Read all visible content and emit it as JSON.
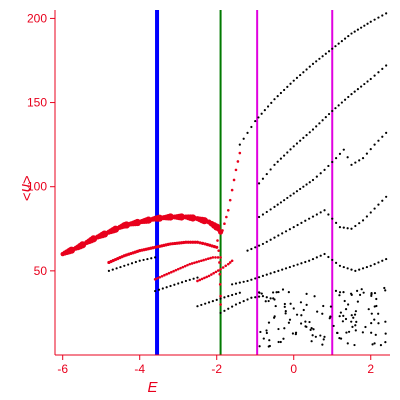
{
  "chart_data": {
    "type": "scatter",
    "title": "",
    "xlabel": "E",
    "ylabel": "<n>",
    "xlim": [
      -6.2,
      2.5
    ],
    "ylim": [
      0,
      205
    ],
    "x_ticks": [
      -6,
      -4,
      -2,
      0,
      2
    ],
    "y_ticks": [
      50,
      100,
      150,
      200
    ],
    "grid": false,
    "legend": "none",
    "colors": {
      "axis": "#e8001c",
      "red_points": "#e8001c",
      "black_points": "#000000",
      "line_blue": "#0000ff",
      "line_green": "#007a00",
      "line_magenta": "#e000e0"
    },
    "vertical_lines": [
      {
        "x": -3.55,
        "color": "#0000ff"
      },
      {
        "x": -1.9,
        "color": "#007a00"
      },
      {
        "x": -0.95,
        "color": "#e000e0"
      },
      {
        "x": 1.0,
        "color": "#e000e0"
      }
    ],
    "red_curves": [
      {
        "points": [
          [
            -6.0,
            60
          ],
          [
            -5.6,
            64
          ],
          [
            -5.2,
            69
          ],
          [
            -4.8,
            73
          ],
          [
            -4.4,
            77
          ],
          [
            -4.0,
            79
          ],
          [
            -3.6,
            81
          ],
          [
            -3.2,
            82
          ],
          [
            -2.8,
            82
          ],
          [
            -2.5,
            81
          ],
          [
            -2.2,
            79
          ],
          [
            -2.0,
            76
          ],
          [
            -1.9,
            73
          ]
        ]
      },
      {
        "points": [
          [
            -4.8,
            55
          ],
          [
            -4.4,
            59
          ],
          [
            -4.0,
            62
          ],
          [
            -3.6,
            64
          ],
          [
            -3.2,
            66
          ],
          [
            -2.8,
            67
          ],
          [
            -2.5,
            67
          ],
          [
            -2.3,
            66
          ],
          [
            -2.0,
            64
          ]
        ]
      },
      {
        "points": [
          [
            -3.6,
            45
          ],
          [
            -3.3,
            48
          ],
          [
            -3.0,
            51
          ],
          [
            -2.7,
            54
          ],
          [
            -2.4,
            56
          ],
          [
            -2.1,
            58
          ],
          [
            -1.9,
            58
          ]
        ]
      },
      {
        "points": [
          [
            -2.5,
            44
          ],
          [
            -2.2,
            47
          ],
          [
            -1.9,
            51
          ],
          [
            -1.7,
            54
          ],
          [
            -1.6,
            56
          ]
        ]
      },
      {
        "points": [
          [
            -1.85,
            74
          ],
          [
            -1.7,
            86
          ],
          [
            -1.6,
            98
          ],
          [
            -1.5,
            110
          ],
          [
            -1.4,
            120
          ]
        ]
      },
      {
        "points": [
          [
            -1.98,
            68
          ],
          [
            -1.95,
            62
          ],
          [
            -1.93,
            55
          ],
          [
            -1.92,
            48
          ],
          [
            -1.91,
            42
          ],
          [
            -1.9,
            35
          ],
          [
            -1.9,
            30
          ]
        ]
      }
    ],
    "black_curves": [
      {
        "points": [
          [
            -1.4,
            125
          ],
          [
            -1.0,
            139
          ],
          [
            -0.5,
            152
          ],
          [
            0.0,
            163
          ],
          [
            0.5,
            173
          ],
          [
            1.0,
            182
          ],
          [
            1.5,
            191
          ],
          [
            2.0,
            198
          ],
          [
            2.4,
            203
          ]
        ]
      },
      {
        "points": [
          [
            -0.9,
            102
          ],
          [
            -0.5,
            113
          ],
          [
            0.0,
            124
          ],
          [
            0.5,
            134
          ],
          [
            1.0,
            145
          ],
          [
            1.5,
            155
          ],
          [
            2.0,
            164
          ],
          [
            2.4,
            172
          ]
        ]
      },
      {
        "points": [
          [
            -0.9,
            82
          ],
          [
            -0.5,
            88
          ],
          [
            0.0,
            96
          ],
          [
            0.5,
            104
          ],
          [
            0.8,
            110
          ],
          [
            1.1,
            117
          ],
          [
            1.3,
            122
          ],
          [
            1.5,
            113
          ],
          [
            1.8,
            117
          ],
          [
            2.1,
            125
          ],
          [
            2.4,
            132
          ]
        ]
      },
      {
        "points": [
          [
            -1.2,
            62
          ],
          [
            -0.8,
            66
          ],
          [
            -0.4,
            71
          ],
          [
            0.0,
            76
          ],
          [
            0.4,
            81
          ],
          [
            0.8,
            86
          ],
          [
            1.0,
            81
          ],
          [
            1.2,
            76
          ],
          [
            1.5,
            75
          ],
          [
            1.8,
            80
          ],
          [
            2.1,
            87
          ],
          [
            2.4,
            94
          ]
        ]
      },
      {
        "points": [
          [
            -1.6,
            42
          ],
          [
            -1.2,
            44
          ],
          [
            -0.8,
            47
          ],
          [
            -0.4,
            50
          ],
          [
            0.0,
            53
          ],
          [
            0.4,
            56
          ],
          [
            0.8,
            60
          ],
          [
            1.2,
            53
          ],
          [
            1.6,
            50
          ],
          [
            2.0,
            53
          ],
          [
            2.4,
            57
          ]
        ]
      },
      {
        "points": [
          [
            -4.8,
            50
          ],
          [
            -4.4,
            53
          ],
          [
            -4.0,
            56
          ],
          [
            -3.6,
            58
          ]
        ]
      },
      {
        "points": [
          [
            -3.6,
            38
          ],
          [
            -3.2,
            41
          ],
          [
            -2.8,
            44
          ],
          [
            -2.5,
            46
          ]
        ]
      },
      {
        "points": [
          [
            -2.5,
            29
          ],
          [
            -2.1,
            32
          ],
          [
            -1.7,
            35
          ],
          [
            -1.4,
            37
          ]
        ]
      },
      {
        "points": [
          [
            -1.9,
            25
          ],
          [
            -1.5,
            30
          ],
          [
            -1.1,
            34
          ],
          [
            -0.8,
            35
          ],
          [
            -0.5,
            33
          ]
        ]
      }
    ],
    "black_noise_region": {
      "x": [
        -0.9,
        2.4
      ],
      "y": [
        5,
        40
      ],
      "count": 130
    }
  }
}
